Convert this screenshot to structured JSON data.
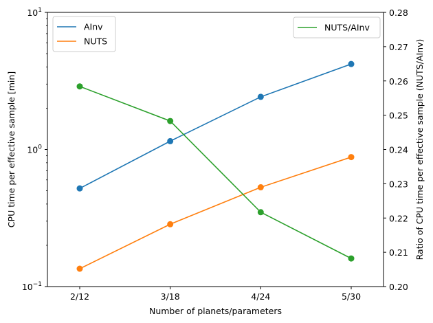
{
  "chart_data": {
    "type": "line",
    "categories": [
      "2/12",
      "3/18",
      "4/24",
      "5/30"
    ],
    "xlabel": "Number of planets/parameters",
    "ylabel": "CPU time per effective sample [min]",
    "ylabel_right": "Ratio of CPU time per effective sample (NUTS/AInv)",
    "y_scale": "log",
    "ylim": [
      0.1,
      10
    ],
    "y_ticks": [
      {
        "value": 0.1,
        "base": "10",
        "exp": "−1"
      },
      {
        "value": 1,
        "base": "10",
        "exp": "0"
      },
      {
        "value": 10,
        "base": "10",
        "exp": "1"
      }
    ],
    "ylim_right": [
      0.2,
      0.28
    ],
    "y_right_ticks": [
      "0.20",
      "0.21",
      "0.22",
      "0.23",
      "0.24",
      "0.25",
      "0.26",
      "0.27",
      "0.28"
    ],
    "grid": false,
    "series": [
      {
        "name": "AInv",
        "axis": "left",
        "color": "#1f77b4",
        "values": [
          0.52,
          1.15,
          2.42,
          4.2
        ]
      },
      {
        "name": "NUTS",
        "axis": "left",
        "color": "#ff7f0e",
        "values": [
          0.135,
          0.285,
          0.53,
          0.88
        ]
      },
      {
        "name": "NUTS/AInv",
        "axis": "right",
        "color": "#2ca02c",
        "values": [
          0.2584,
          0.2483,
          0.2217,
          0.2082
        ]
      }
    ],
    "legend_left": {
      "placement": "upper-left",
      "entries": [
        "AInv",
        "NUTS"
      ]
    },
    "legend_right": {
      "placement": "upper-right",
      "entries": [
        "NUTS/AInv"
      ]
    }
  }
}
